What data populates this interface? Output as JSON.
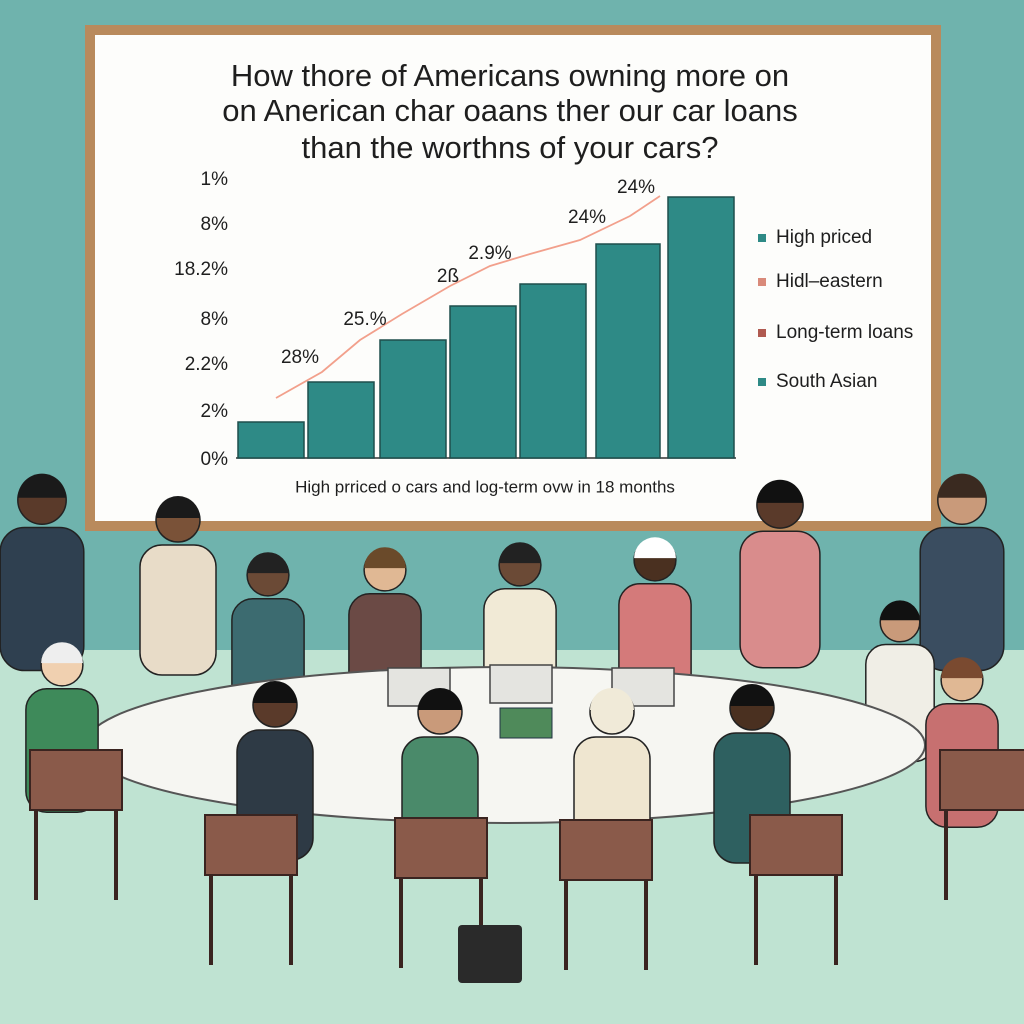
{
  "board": {
    "title": [
      "How thore of Americans owning  more on",
      "on Anerican char oaans ther  our  car loans",
      "than the  worthns of your cars?"
    ],
    "axis_labels": [
      "1%",
      "8%",
      "18.2%",
      "8%",
      "2.2%",
      "2%",
      "0%"
    ],
    "bar_labels": [
      "28%",
      "25.%",
      "2ß",
      "2.9%",
      "24%",
      "24%"
    ],
    "legend": [
      "High priced",
      "Hidl–eastern",
      "Long-term loans",
      "South Asian"
    ],
    "caption": "High prriced o cars and log-term ovw in 18 months"
  }
}
